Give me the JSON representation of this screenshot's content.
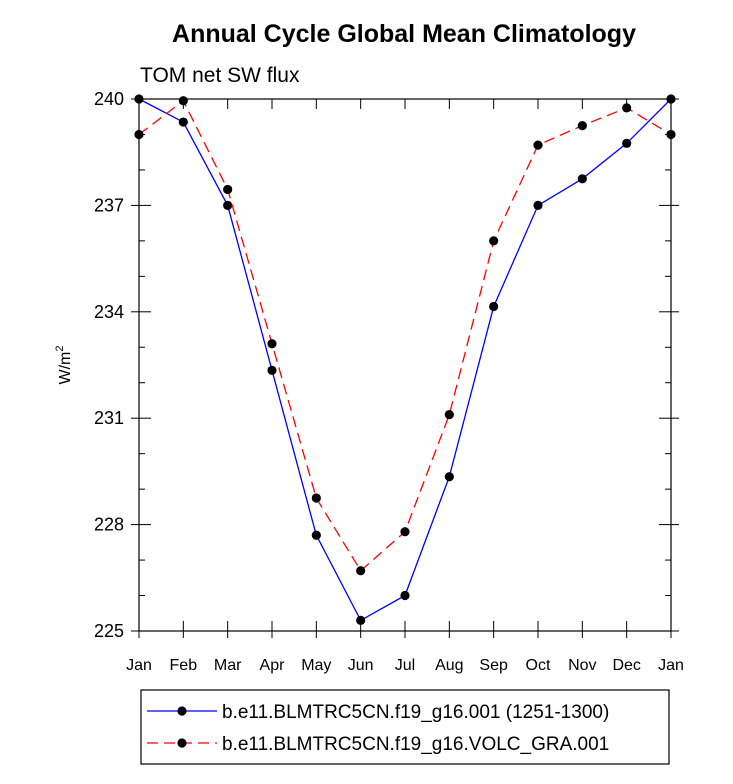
{
  "chart_data": {
    "type": "line",
    "title": "Annual Cycle Global Mean Climatology",
    "subtitle": "TOM net SW flux",
    "xlabel": "",
    "ylabel": "W/m",
    "ylabel_superscript": "2",
    "ylim": [
      225,
      240
    ],
    "yticks": [
      225,
      228,
      231,
      234,
      237,
      240
    ],
    "categories": [
      "Jan",
      "Feb",
      "Mar",
      "Apr",
      "May",
      "Jun",
      "Jul",
      "Aug",
      "Sep",
      "Oct",
      "Nov",
      "Dec",
      "Jan"
    ],
    "legend_position": "bottom",
    "series": [
      {
        "name": "b.e11.BLMTRC5CN.f19_g16.001 (1251-1300)",
        "color": "#0000ff",
        "dash": "solid",
        "values": [
          240.0,
          239.35,
          237.0,
          232.35,
          227.7,
          225.3,
          226.0,
          229.35,
          234.15,
          237.0,
          237.75,
          238.75,
          240.0
        ]
      },
      {
        "name": "b.e11.BLMTRC5CN.f19_g16.VOLC_GRA.001",
        "color": "#ff0000",
        "dash": "dashed",
        "values": [
          239.0,
          239.95,
          237.45,
          233.1,
          228.75,
          226.7,
          227.8,
          231.1,
          236.0,
          238.7,
          239.25,
          239.75,
          239.0
        ]
      }
    ]
  }
}
